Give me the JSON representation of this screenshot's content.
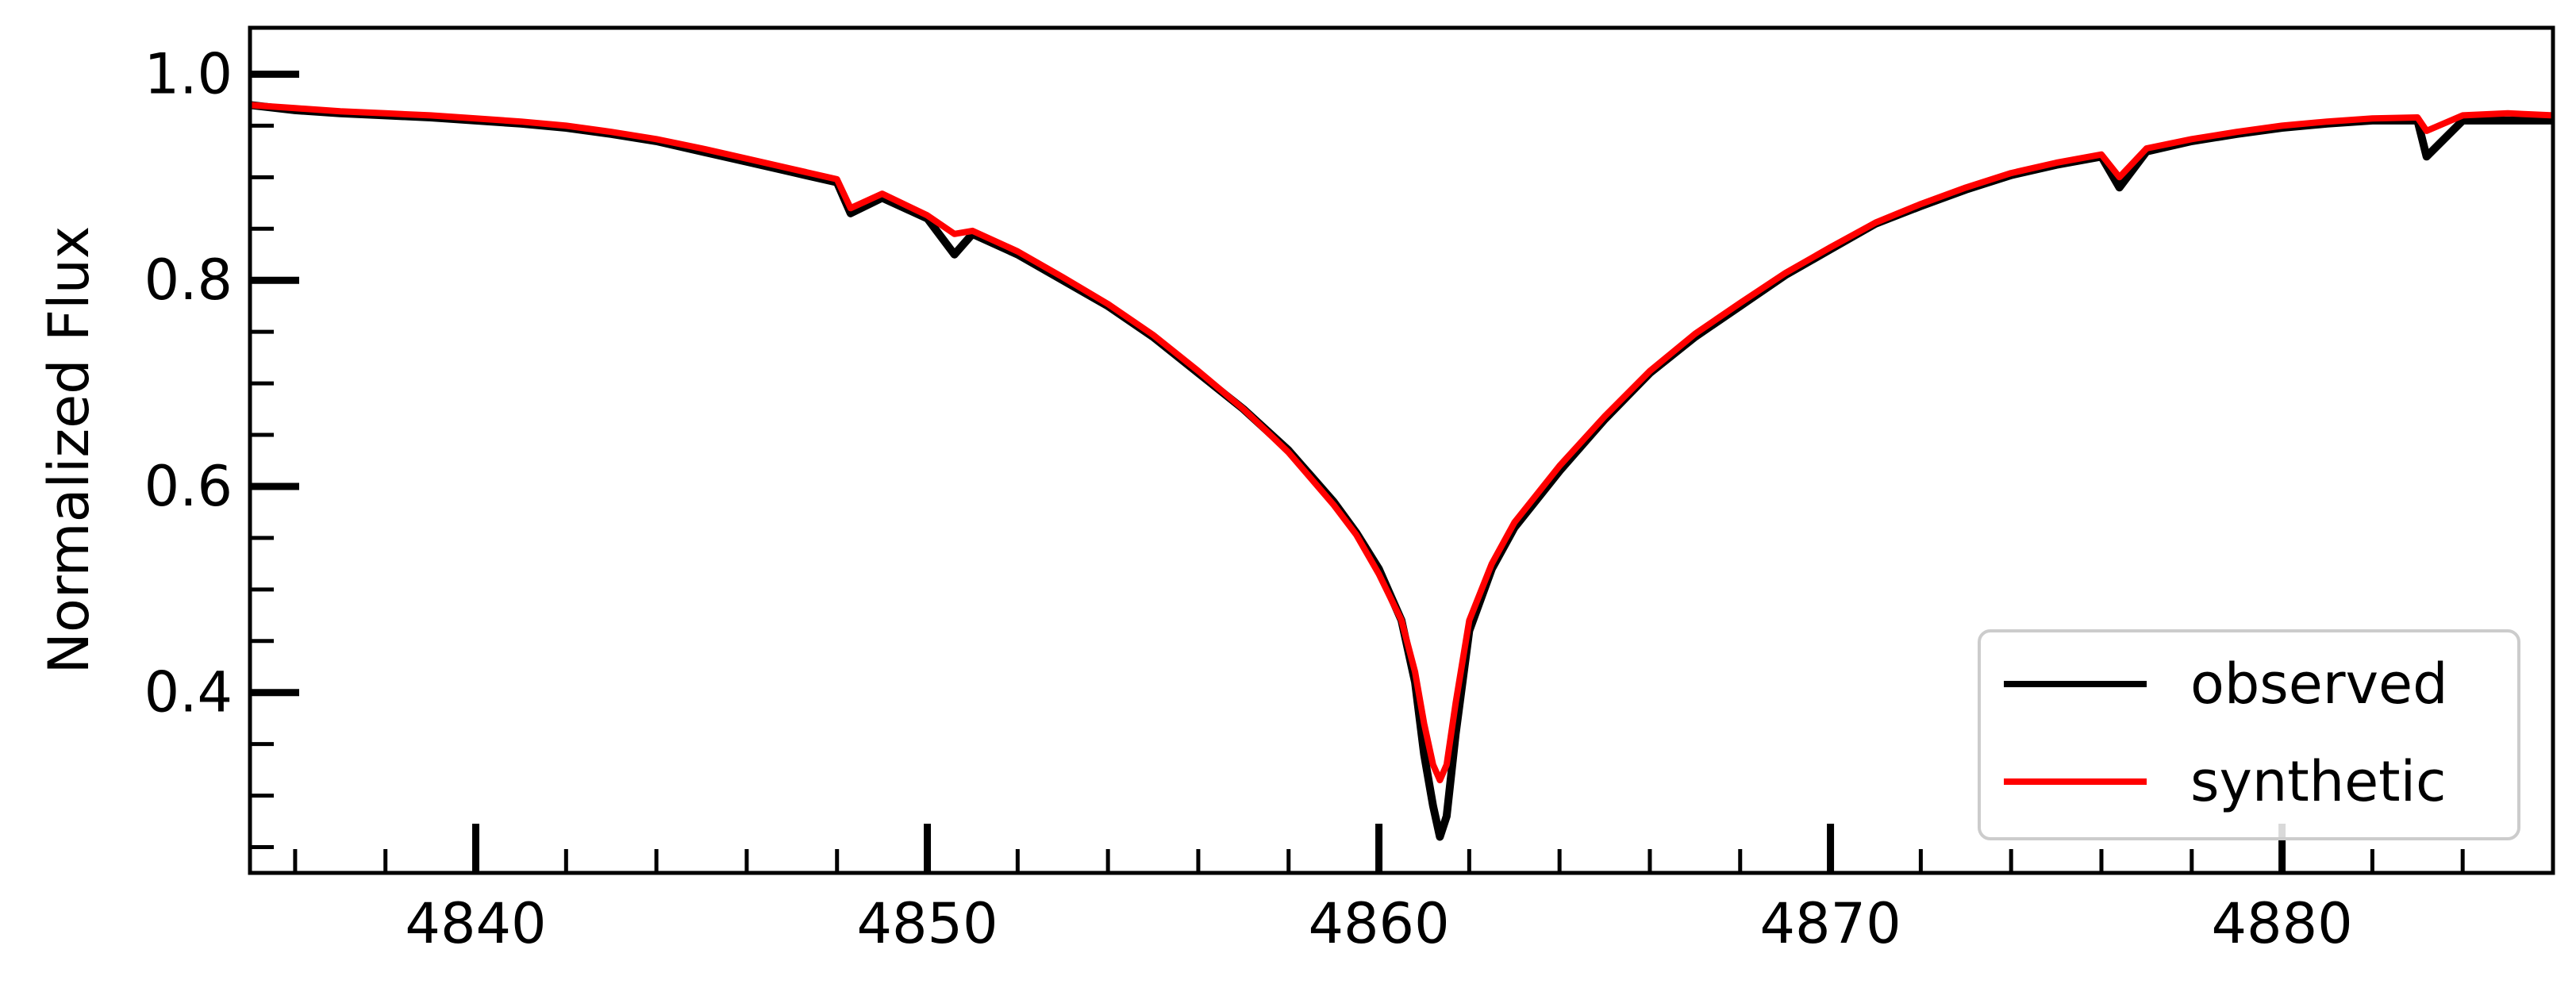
{
  "chart_data": {
    "type": "line",
    "title": "",
    "xlabel": "",
    "ylabel": "Normalized Flux",
    "xlim": [
      4835,
      4886
    ],
    "ylim": [
      0.225,
      1.045
    ],
    "x_ticks": [
      4840,
      4850,
      4860,
      4870,
      4880
    ],
    "y_ticks": [
      0.4,
      0.6,
      0.8,
      1.0
    ],
    "x_tick_labels": [
      "4840",
      "4850",
      "4860",
      "4870",
      "4880"
    ],
    "y_tick_labels": [
      "0.4",
      "0.6",
      "0.8",
      "1.0"
    ],
    "grid": false,
    "legend": {
      "position": "bottom-right",
      "entries": [
        "observed",
        "synthetic"
      ]
    },
    "colors": {
      "observed": "#000000",
      "synthetic": "#ff0000"
    },
    "series": [
      {
        "name": "observed",
        "x": [
          4835,
          4836,
          4837,
          4838,
          4839,
          4840,
          4841,
          4842,
          4843,
          4844,
          4845,
          4846,
          4847,
          4848,
          4848.3,
          4849,
          4850,
          4850.6,
          4851,
          4852,
          4853,
          4854,
          4855,
          4856,
          4857,
          4858,
          4859,
          4859.5,
          4860,
          4860.5,
          4860.8,
          4861,
          4861.2,
          4861.35,
          4861.5,
          4861.7,
          4862,
          4862.5,
          4863,
          4864,
          4865,
          4866,
          4867,
          4868,
          4869,
          4870,
          4871,
          4872,
          4873,
          4874,
          4875,
          4876,
          4876.4,
          4877,
          4878,
          4879,
          4880,
          4881,
          4882,
          4883,
          4883.2,
          4884,
          4885,
          4886
        ],
        "y": [
          0.97,
          0.965,
          0.962,
          0.96,
          0.958,
          0.955,
          0.952,
          0.948,
          0.942,
          0.935,
          0.925,
          0.915,
          0.905,
          0.895,
          0.865,
          0.88,
          0.86,
          0.825,
          0.845,
          0.825,
          0.8,
          0.775,
          0.745,
          0.71,
          0.675,
          0.635,
          0.585,
          0.555,
          0.52,
          0.47,
          0.41,
          0.34,
          0.29,
          0.26,
          0.28,
          0.36,
          0.46,
          0.52,
          0.56,
          0.615,
          0.665,
          0.71,
          0.745,
          0.775,
          0.805,
          0.83,
          0.855,
          0.872,
          0.888,
          0.902,
          0.912,
          0.92,
          0.89,
          0.925,
          0.935,
          0.942,
          0.948,
          0.952,
          0.955,
          0.955,
          0.92,
          0.955,
          0.955,
          0.955
        ]
      },
      {
        "name": "synthetic",
        "x": [
          4835,
          4836,
          4837,
          4838,
          4839,
          4840,
          4841,
          4842,
          4843,
          4844,
          4845,
          4846,
          4847,
          4848,
          4848.3,
          4849,
          4850,
          4850.6,
          4851,
          4852,
          4853,
          4854,
          4855,
          4856,
          4857,
          4858,
          4859,
          4859.5,
          4860,
          4860.5,
          4860.8,
          4861,
          4861.2,
          4861.35,
          4861.5,
          4861.7,
          4862,
          4862.5,
          4863,
          4864,
          4865,
          4866,
          4867,
          4868,
          4869,
          4870,
          4871,
          4872,
          4873,
          4874,
          4875,
          4876,
          4876.4,
          4877,
          4878,
          4879,
          4880,
          4881,
          4882,
          4883,
          4883.2,
          4884,
          4885,
          4886
        ],
        "y": [
          0.97,
          0.967,
          0.964,
          0.962,
          0.96,
          0.957,
          0.954,
          0.95,
          0.944,
          0.937,
          0.928,
          0.918,
          0.908,
          0.898,
          0.87,
          0.884,
          0.863,
          0.845,
          0.848,
          0.828,
          0.803,
          0.777,
          0.747,
          0.712,
          0.675,
          0.633,
          0.582,
          0.553,
          0.515,
          0.47,
          0.42,
          0.37,
          0.33,
          0.315,
          0.33,
          0.39,
          0.47,
          0.525,
          0.565,
          0.62,
          0.668,
          0.712,
          0.748,
          0.778,
          0.807,
          0.832,
          0.856,
          0.874,
          0.89,
          0.904,
          0.914,
          0.922,
          0.9,
          0.928,
          0.937,
          0.944,
          0.95,
          0.954,
          0.957,
          0.958,
          0.945,
          0.96,
          0.962,
          0.96
        ]
      }
    ]
  }
}
